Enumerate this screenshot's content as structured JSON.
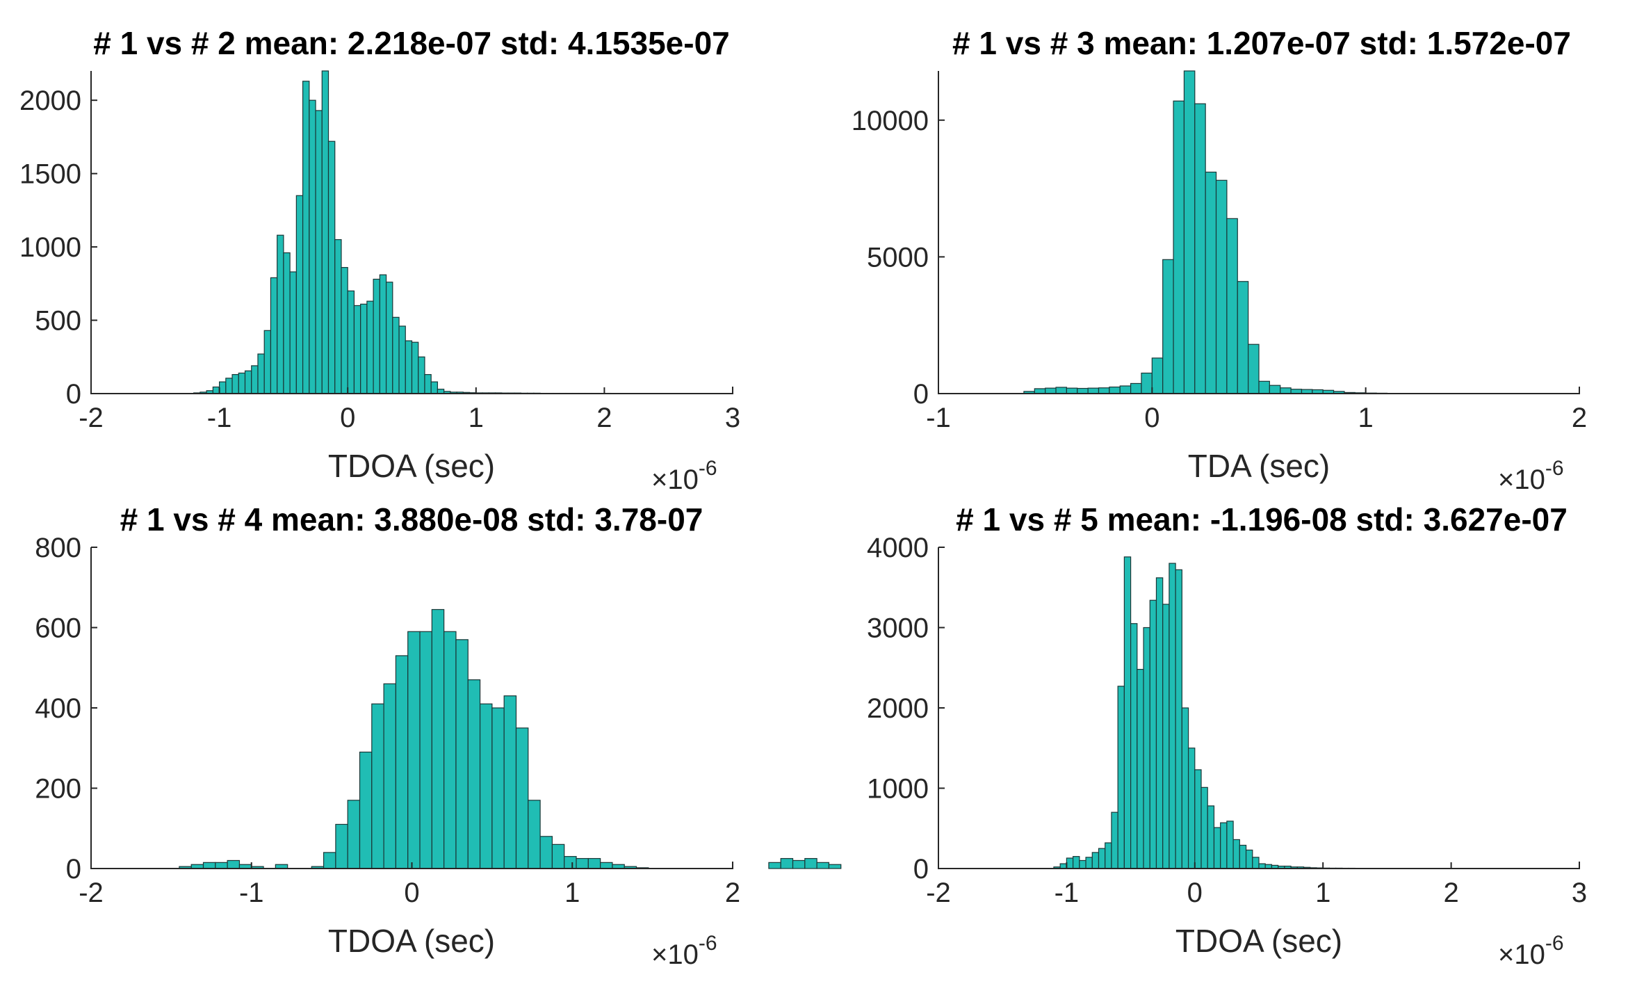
{
  "colors": {
    "bar_fill": "#20BDB4",
    "bar_edge": "#1A3636",
    "axis": "#262626"
  },
  "chart_data": [
    {
      "type": "bar",
      "title": "# 1 vs # 2  mean: 2.218e-07 std: 4.1535e-07",
      "xlabel": "TDOA (sec)",
      "ylabel": "",
      "x_exponent": {
        "prefix": "×10",
        "power": "-6"
      },
      "xlim": [
        -2,
        3
      ],
      "ylim": [
        0,
        2200
      ],
      "xticks": [
        -2,
        -1,
        0,
        1,
        2,
        3
      ],
      "xtick_labels": [
        "-2",
        "-1",
        "0",
        "1",
        "2",
        "3"
      ],
      "yticks": [
        0,
        500,
        1000,
        1500,
        2000
      ],
      "ytick_labels": [
        "0",
        "500",
        "1000",
        "1500",
        "2000"
      ],
      "bin_start": -1.2,
      "bin_width": 0.05,
      "values": [
        5,
        10,
        20,
        45,
        80,
        105,
        130,
        140,
        155,
        190,
        270,
        430,
        790,
        1080,
        960,
        830,
        1350,
        2130,
        2000,
        1930,
        2200,
        1720,
        1050,
        860,
        700,
        600,
        610,
        630,
        780,
        810,
        760,
        520,
        460,
        360,
        350,
        250,
        130,
        80,
        30,
        15,
        10,
        10,
        8,
        6,
        5,
        5,
        5,
        5,
        4,
        4,
        4,
        3,
        3,
        3,
        2,
        2,
        2,
        2,
        2,
        2,
        2,
        2,
        2,
        2,
        2
      ]
    },
    {
      "type": "bar",
      "title": "# 1 vs # 3 mean: 1.207e-07 std: 1.572e-07",
      "xlabel": "TDA (sec)",
      "ylabel": "",
      "x_exponent": {
        "prefix": "×10",
        "power": "-6"
      },
      "xlim": [
        -1,
        2
      ],
      "ylim": [
        0,
        11800
      ],
      "xticks": [
        -1,
        0,
        1,
        2
      ],
      "xtick_labels": [
        "-1",
        "0",
        "1",
        "2"
      ],
      "yticks": [
        0,
        5000,
        10000
      ],
      "ytick_labels": [
        "0",
        "5000",
        "10000"
      ],
      "bin_start": -0.6,
      "bin_width": 0.05,
      "values": [
        80,
        180,
        200,
        230,
        200,
        190,
        200,
        210,
        240,
        280,
        370,
        750,
        1300,
        4900,
        10700,
        11800,
        10600,
        8100,
        7800,
        6400,
        4100,
        1800,
        450,
        300,
        210,
        160,
        150,
        140,
        120,
        80,
        40,
        30,
        20,
        15,
        10,
        8,
        6,
        5,
        4,
        4,
        3,
        3,
        3,
        3,
        2,
        2,
        2,
        2,
        2
      ]
    },
    {
      "type": "bar",
      "title": "# 1 vs # 4 mean: 3.880e-08 std: 3.78-07",
      "xlabel": "TDOA (sec)",
      "ylabel": "",
      "x_exponent": {
        "prefix": "×10",
        "power": "-6"
      },
      "xlim": [
        -2,
        2
      ],
      "ylim": [
        0,
        800
      ],
      "xticks": [
        -2,
        -1,
        0,
        1,
        2
      ],
      "xtick_labels": [
        "-2",
        "-1",
        "0",
        "1",
        "2"
      ],
      "yticks": [
        0,
        200,
        400,
        600,
        800
      ],
      "ytick_labels": [
        "0",
        "200",
        "400",
        "600",
        "800"
      ],
      "bin_start": -1.45,
      "bin_width": 0.075,
      "values": [
        5,
        10,
        15,
        15,
        20,
        10,
        5,
        0,
        10,
        0,
        0,
        5,
        40,
        110,
        170,
        290,
        410,
        460,
        530,
        590,
        590,
        645,
        590,
        570,
        470,
        410,
        400,
        430,
        350,
        170,
        80,
        60,
        30,
        25,
        25,
        15,
        10,
        5,
        2,
        0,
        0,
        0,
        0,
        0,
        0,
        0,
        0,
        0,
        0,
        15,
        25,
        20,
        25,
        15,
        10
      ]
    },
    {
      "type": "bar",
      "title": "# 1 vs # 5 mean: -1.196-08 std: 3.627e-07",
      "xlabel": "TDOA (sec)",
      "ylabel": "",
      "x_exponent": {
        "prefix": "×10",
        "power": "-6"
      },
      "xlim": [
        -2,
        3
      ],
      "ylim": [
        0,
        4000
      ],
      "xticks": [
        -2,
        -1,
        0,
        1,
        2,
        3
      ],
      "xtick_labels": [
        "-2",
        "-1",
        "0",
        "1",
        "2",
        "3"
      ],
      "yticks": [
        0,
        1000,
        2000,
        3000,
        4000
      ],
      "ytick_labels": [
        "0",
        "1000",
        "2000",
        "3000",
        "4000"
      ],
      "bin_start": -1.1,
      "bin_width": 0.05,
      "values": [
        20,
        60,
        130,
        150,
        100,
        140,
        200,
        250,
        320,
        700,
        2270,
        3880,
        3050,
        2480,
        3000,
        3340,
        3620,
        3290,
        3800,
        3720,
        2000,
        1500,
        1230,
        1010,
        780,
        510,
        570,
        590,
        360,
        290,
        230,
        140,
        60,
        50,
        40,
        30,
        30,
        20,
        20,
        15,
        10,
        8,
        6,
        5,
        5,
        4,
        4,
        3,
        3,
        3,
        3,
        2,
        2,
        2,
        2,
        2,
        2,
        2,
        2,
        2,
        2,
        2
      ]
    }
  ]
}
